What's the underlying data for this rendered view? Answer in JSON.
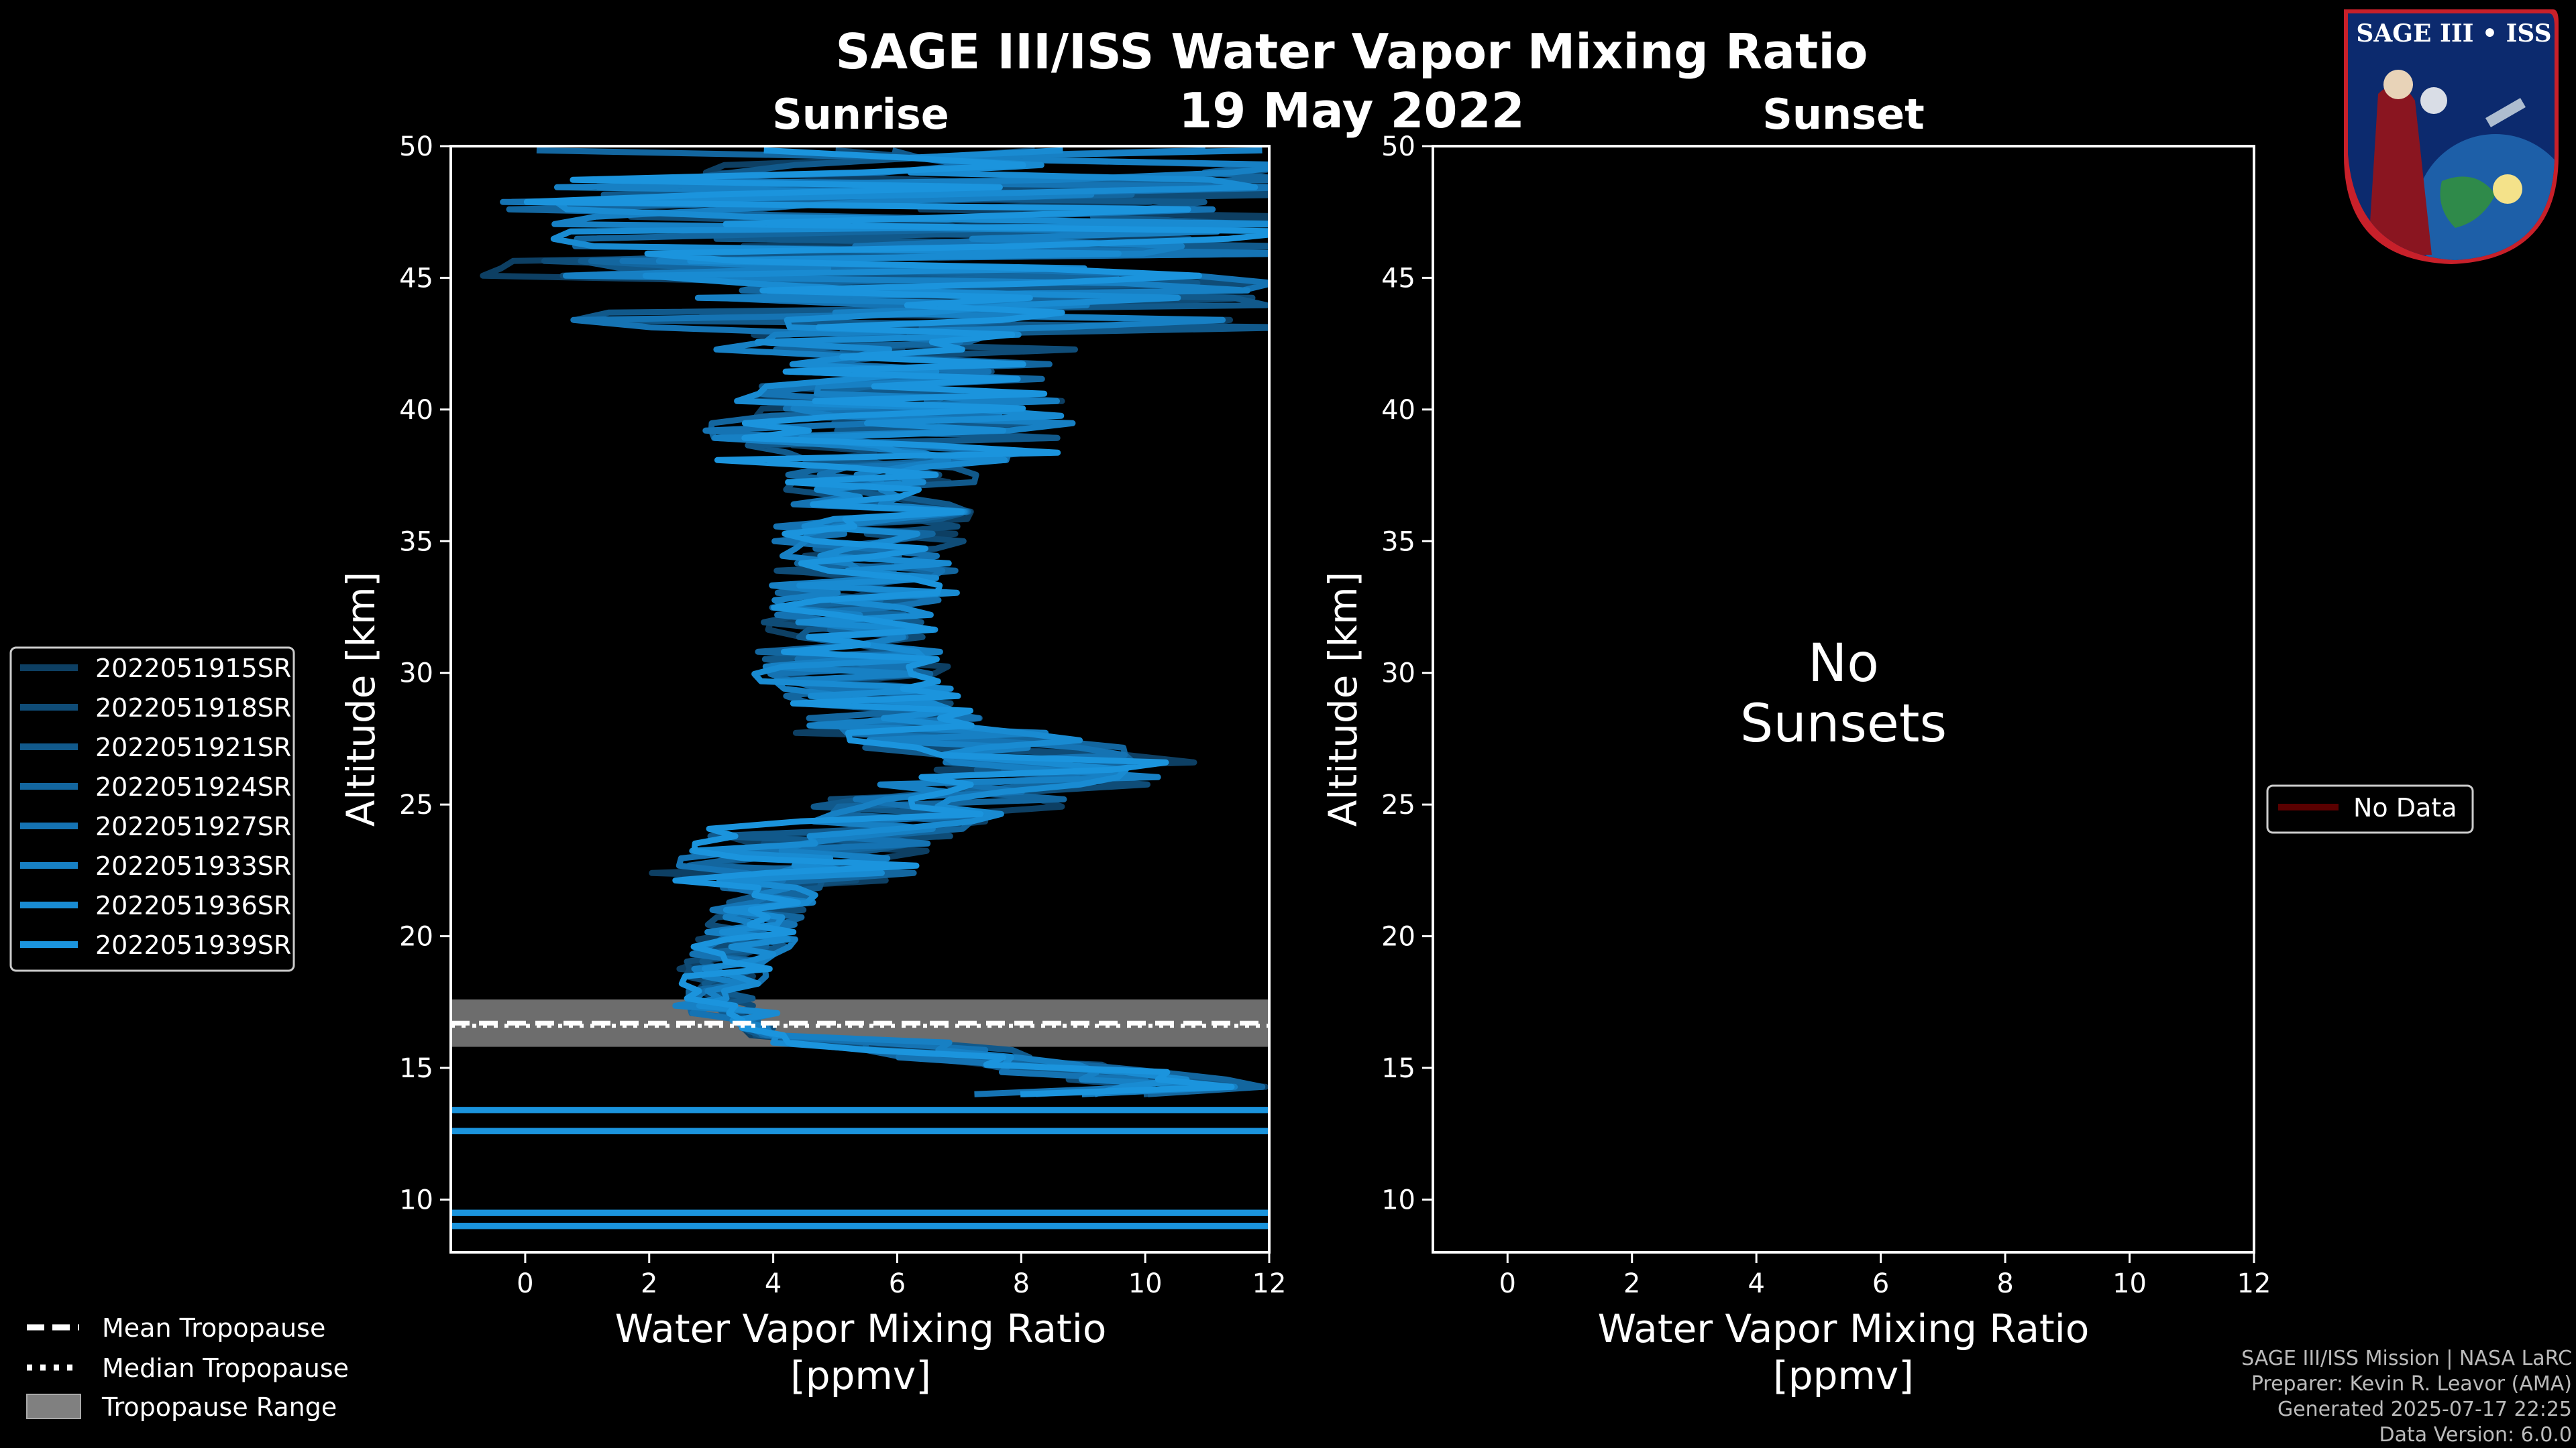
{
  "header": {
    "title": "SAGE III/ISS Water Vapor Mixing Ratio",
    "date": "19 May 2022"
  },
  "logo": {
    "text": "SAGE III • ISS"
  },
  "chart_data": [
    {
      "type": "line",
      "panel": "Sunrise",
      "title": "Sunrise",
      "xlabel": "Water Vapor Mixing Ratio",
      "xlabel_units": "[ppmv]",
      "ylabel": "Altitude [km]",
      "xlim": [
        -1.2,
        12
      ],
      "ylim": [
        8,
        50
      ],
      "xticks": [
        0,
        2,
        4,
        6,
        8,
        10,
        12
      ],
      "yticks": [
        10,
        15,
        20,
        25,
        30,
        35,
        40,
        45,
        50
      ],
      "series": [
        {
          "name": "2022051915SR",
          "color": "#0d3f63",
          "seed": 11
        },
        {
          "name": "2022051918SR",
          "color": "#0f4c77",
          "seed": 23
        },
        {
          "name": "2022051921SR",
          "color": "#11598b",
          "seed": 37
        },
        {
          "name": "2022051924SR",
          "color": "#13669f",
          "seed": 41
        },
        {
          "name": "2022051927SR",
          "color": "#1573b3",
          "seed": 53
        },
        {
          "name": "2022051933SR",
          "color": "#1780c4",
          "seed": 67
        },
        {
          "name": "2022051936SR",
          "color": "#198bd2",
          "seed": 79
        },
        {
          "name": "2022051939SR",
          "color": "#1b94dd",
          "seed": 97
        }
      ],
      "mean_profile": [
        [
          0.5,
          9.0
        ],
        [
          0.5,
          9.5
        ],
        [
          0.5,
          12.6
        ],
        [
          0.5,
          13.4
        ],
        [
          10.5,
          14.2
        ],
        [
          7.5,
          15.2
        ],
        [
          4.0,
          16.2
        ],
        [
          3.2,
          17.2
        ],
        [
          3.2,
          18.5
        ],
        [
          3.6,
          20.0
        ],
        [
          4.0,
          22.0
        ],
        [
          4.8,
          24.0
        ],
        [
          7.5,
          25.5
        ],
        [
          9.0,
          26.5
        ],
        [
          6.0,
          28.0
        ],
        [
          5.2,
          30.0
        ],
        [
          5.5,
          33.0
        ],
        [
          5.6,
          36.0
        ],
        [
          5.8,
          39.0
        ],
        [
          6.0,
          42.0
        ],
        [
          6.3,
          45.0
        ],
        [
          6.5,
          48.0
        ],
        [
          6.5,
          50.0
        ]
      ],
      "tropopause": {
        "mean": 16.7,
        "median": 16.6,
        "range": [
          15.8,
          17.6
        ]
      }
    },
    {
      "type": "line",
      "panel": "Sunset",
      "title": "Sunset",
      "xlabel": "Water Vapor Mixing Ratio",
      "xlabel_units": "[ppmv]",
      "ylabel": "Altitude [km]",
      "xlim": [
        -1.2,
        12
      ],
      "ylim": [
        8,
        50
      ],
      "xticks": [
        0,
        2,
        4,
        6,
        8,
        10,
        12
      ],
      "yticks": [
        10,
        15,
        20,
        25,
        30,
        35,
        40,
        45,
        50
      ],
      "series": [],
      "annotation": [
        "No",
        "Sunsets"
      ],
      "legend": [
        {
          "name": "No Data",
          "color": "#5a0000"
        }
      ]
    }
  ],
  "tropopause_legend": [
    {
      "name": "Mean Tropopause",
      "style": "dashed"
    },
    {
      "name": "Median Tropopause",
      "style": "dotted"
    },
    {
      "name": "Tropopause Range",
      "style": "patch"
    }
  ],
  "credits": {
    "line1": "SAGE III/ISS Mission | NASA LaRC",
    "line2": "Preparer: Kevin R. Leavor (AMA)",
    "line3": "Generated 2025-07-17 22:25",
    "line4": "Data Version: 6.0.0"
  }
}
